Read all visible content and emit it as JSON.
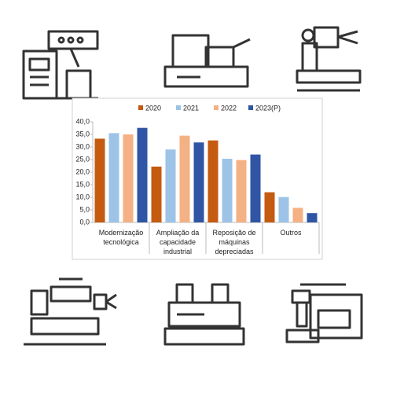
{
  "chart_data": {
    "type": "bar",
    "categories": [
      "Modernização\ntecnológica",
      "Ampliação da\ncapacidade\nindustrial",
      "Reposição de\nmáquinas\ndepreciadas",
      "Outros"
    ],
    "series": [
      {
        "name": "2020",
        "color": "#c55a11",
        "values": [
          33.3,
          22.2,
          32.6,
          12.0
        ]
      },
      {
        "name": "2021",
        "color": "#9dc3e6",
        "values": [
          35.5,
          29.0,
          25.3,
          10.1
        ]
      },
      {
        "name": "2022",
        "color": "#f4b183",
        "values": [
          35.0,
          34.5,
          24.8,
          5.8
        ]
      },
      {
        "name": "2023(P)",
        "color": "#2f55a4",
        "values": [
          37.6,
          31.8,
          27.0,
          3.7
        ]
      }
    ],
    "ylim": [
      0,
      40
    ],
    "yticks": [
      {
        "value": 0,
        "label": "0,0"
      },
      {
        "value": 5,
        "label": "5,0"
      },
      {
        "value": 10,
        "label": "10,0"
      },
      {
        "value": 15,
        "label": "15,0"
      },
      {
        "value": 20,
        "label": "20,0"
      },
      {
        "value": 25,
        "label": "25,0"
      },
      {
        "value": 30,
        "label": "30,0"
      },
      {
        "value": 35,
        "label": "35,0"
      },
      {
        "value": 40,
        "label": "40,0"
      }
    ],
    "grid": false,
    "legend": "top"
  }
}
